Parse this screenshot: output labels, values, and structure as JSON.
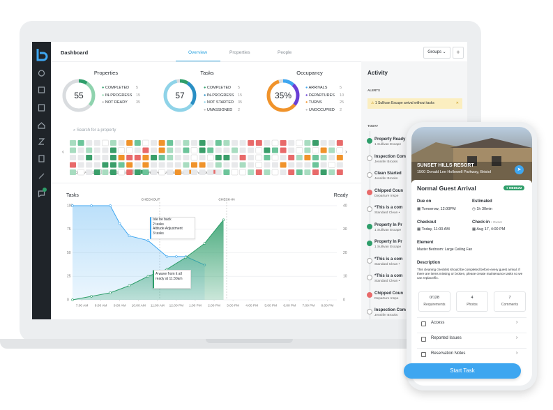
{
  "header": {
    "title": "Dashboard",
    "tabs": [
      "Overview",
      "Properties",
      "People"
    ],
    "groups": "Groups",
    "add": "+"
  },
  "summaries": [
    {
      "title": "Properties",
      "center": "55",
      "items": [
        {
          "label": "COMPLETED",
          "value": 5,
          "color": "#2e9e6a"
        },
        {
          "label": "IN-PROGRESS",
          "value": 15,
          "color": "#8fd3ae"
        },
        {
          "label": "NOT READY",
          "value": 35,
          "color": "#d9dcdf"
        }
      ]
    },
    {
      "title": "Tasks",
      "center": "57",
      "items": [
        {
          "label": "COMPLETED",
          "value": 5,
          "color": "#2e9e6a"
        },
        {
          "label": "IN-PROGRESS",
          "value": 15,
          "color": "#2a8fc4"
        },
        {
          "label": "NOT STARTED",
          "value": 35,
          "color": "#8fd3e8"
        },
        {
          "label": "UNASSIGNED",
          "value": 2,
          "color": "#d9dcdf"
        }
      ]
    },
    {
      "title": "Occupancy",
      "center": "35%",
      "items": [
        {
          "label": "ARRIVALS",
          "value": 5,
          "color": "#3ea6f0"
        },
        {
          "label": "DEPARTURES",
          "value": 10,
          "color": "#6a3fd6"
        },
        {
          "label": "TURNS",
          "value": 25,
          "color": "#f0932b"
        },
        {
          "label": "UNOCCUPIED",
          "value": 2,
          "color": "#d9dcdf"
        }
      ]
    }
  ],
  "property_grid": {
    "search": "Search for a property",
    "legend": [
      {
        "label": "NOT STARTED",
        "colors": [
          "#ffffff"
        ]
      },
      {
        "label": "IN PROGRESS",
        "colors": [
          "#a8dcc0",
          "#6cc49a",
          "#3a9e6a"
        ]
      },
      {
        "label": "READY"
      },
      {
        "label": "UNASSIGNED",
        "colors": [
          "#f0932b"
        ]
      },
      {
        "label": "OVERDUE",
        "colors": [
          "#e86a6a"
        ]
      }
    ]
  },
  "chart_data": {
    "type": "line",
    "y_label": "Tasks",
    "y2_label": "Ready",
    "xlim": [
      6.5,
      20.5
    ],
    "xticks": [
      {
        "value": 7,
        "label": "7:00 AM"
      },
      {
        "value": 8,
        "label": "8:00 AM"
      },
      {
        "value": 9,
        "label": "9:00 AM"
      },
      {
        "value": 10,
        "label": "10:00 AM"
      },
      {
        "value": 11,
        "label": "11:00 AM"
      },
      {
        "value": 12,
        "label": "12:00 PM"
      },
      {
        "value": 13,
        "label": "1:00 PM"
      },
      {
        "value": 14,
        "label": "2:00 PM"
      },
      {
        "value": 15,
        "label": "3:00 PM"
      },
      {
        "value": 16,
        "label": "4:00 PM"
      },
      {
        "value": 17,
        "label": "5:00 PM"
      },
      {
        "value": 18,
        "label": "6:00 PM"
      },
      {
        "value": 19,
        "label": "7:00 PM"
      },
      {
        "value": 20,
        "label": "8:00 PM"
      }
    ],
    "ylim": [
      0,
      100
    ],
    "yticks": [
      0,
      25,
      50,
      75,
      100
    ],
    "y2lim": [
      0,
      40
    ],
    "y2ticks": [
      0,
      10,
      20,
      30,
      40
    ],
    "grid": true,
    "series": [
      {
        "name": "Tasks",
        "color": "#3ea6f0",
        "x": [
          6.5,
          7.5,
          8.5,
          9,
          9.5,
          10.5,
          11.5,
          12,
          12.5,
          13.5
        ],
        "values": [
          100,
          100,
          100,
          81,
          68,
          63,
          46,
          46,
          46,
          37
        ]
      },
      {
        "name": "Ready",
        "color": "#2e9e6a",
        "axis": "y2",
        "x": [
          6.5,
          7.5,
          8.5,
          9.5,
          10.5,
          11.5,
          12.5,
          13.5,
          14.5
        ],
        "values": [
          0,
          1.5,
          3,
          6,
          10,
          13,
          18,
          24,
          34
        ]
      }
    ],
    "markers": [
      "CHECKOUT",
      "CHECK-IN"
    ],
    "annotations": [
      {
        "title": "Isle be back",
        "detail": "2 tasks"
      },
      {
        "title": "Altitude Adjustment",
        "detail": "3 tasks"
      },
      {
        "title": "A wave from it all",
        "detail": "ready at 11:30am"
      }
    ]
  },
  "activity": {
    "title": "Activity",
    "alerts_label": "ALERTS",
    "alert": "1 Sullivan Escape arrival without tasks",
    "today": "TODAY",
    "items": [
      {
        "title": "Property Ready",
        "subtitle": "1 Sullivan Escape",
        "status": "#2e9e6a"
      },
      {
        "title": "Inspection Com",
        "subtitle": "Jennifer Brooks",
        "status": "#ffffff"
      },
      {
        "title": "Clean Started",
        "subtitle": "Jennifer Brooks",
        "status": "#ffffff"
      },
      {
        "title": "Chipped Coun",
        "subtitle": "Departure Inspe",
        "status": "#e86a6a"
      },
      {
        "title": "*This is a com",
        "subtitle": "Standard Clean •",
        "status": "#ffffff"
      },
      {
        "title": "Property In Pr",
        "subtitle": "1 Sullivan Escape",
        "status": "#2e9e6a"
      },
      {
        "title": "Property In Pr",
        "subtitle": "1 Sullivan Escape",
        "status": "#2e9e6a"
      },
      {
        "title": "*This is a com",
        "subtitle": "Standard Clean •",
        "status": "#ffffff"
      },
      {
        "title": "*This is a com",
        "subtitle": "Standard Clean •",
        "status": "#ffffff"
      },
      {
        "title": "Chipped Coun",
        "subtitle": "Departure Inspe",
        "status": "#e86a6a"
      },
      {
        "title": "Inspection Com",
        "subtitle": "Jennifer Brooks",
        "status": "#ffffff"
      }
    ]
  },
  "phone": {
    "property": "SUNSET HILLS RESORT",
    "address": "1500 Donald Lee Hollowell Parkway, Bristol",
    "task": "Normal Guest Arrival",
    "badge": "MEDIUM",
    "due_label": "Due on",
    "due": "Tomorrow, 12:00PM",
    "estimated_label": "Estimated",
    "estimated": "1h 30min",
    "checkout_label": "Checkout",
    "checkout": "Today, 11:00 AM",
    "checkin_label": "Check-in",
    "checkin_owner": "• Owner",
    "checkin": "Aug 17, 4:00 PM",
    "element_label": "Element",
    "element": "Master Bedroom: Large Ceiling Fan",
    "description_label": "Description",
    "description": "This cleaning checklist should be completed before every guest arrival. If there are items missing or broken, please create maintenance tasks so we can replace/fix.",
    "stats": [
      {
        "value": "0/128",
        "label": "Requirements"
      },
      {
        "value": "4",
        "label": "Photos"
      },
      {
        "value": "7",
        "label": "Comments"
      }
    ],
    "links": [
      "Access",
      "Reported Issues",
      "Reservation Notes"
    ],
    "button": "Start Task"
  }
}
